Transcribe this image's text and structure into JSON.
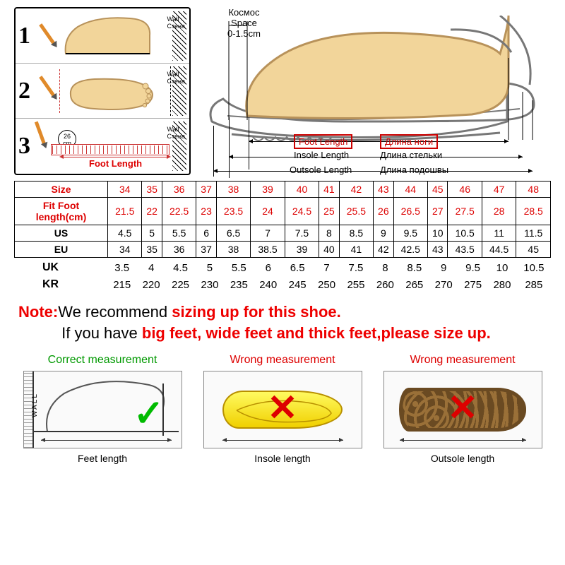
{
  "steps": {
    "wall_en": "Wall",
    "wall_ru": "Стена",
    "circle": "26\ncm",
    "foot_length": "Foot Length"
  },
  "diagram": {
    "space_ru": "Космос",
    "space_en": "Space",
    "space_range": "0-1.5cm",
    "foot_en": "Foot Length",
    "foot_ru": "Длина ноги",
    "insole_en": "Insole Length",
    "insole_ru": "Длина стельки",
    "outsole_en": "Outsole Length",
    "outsole_ru": "Длина подошвы"
  },
  "table": {
    "headers": [
      "Size",
      "Fit Foot length(cm)",
      "US",
      "EU",
      "UK",
      "KR"
    ],
    "sizes": [
      "34",
      "35",
      "36",
      "37",
      "38",
      "39",
      "40",
      "41",
      "42",
      "43",
      "44",
      "45",
      "46",
      "47",
      "48"
    ],
    "fit": [
      "21.5",
      "22",
      "22.5",
      "23",
      "23.5",
      "24",
      "24.5",
      "25",
      "25.5",
      "26",
      "26.5",
      "27",
      "27.5",
      "28",
      "28.5"
    ],
    "us": [
      "4.5",
      "5",
      "5.5",
      "6",
      "6.5",
      "7",
      "7.5",
      "8",
      "8.5",
      "9",
      "9.5",
      "10",
      "10.5",
      "11",
      "11.5"
    ],
    "eu": [
      "34",
      "35",
      "36",
      "37",
      "38",
      "38.5",
      "39",
      "40",
      "41",
      "42",
      "42.5",
      "43",
      "43.5",
      "44.5",
      "45"
    ],
    "uk": [
      "3.5",
      "4",
      "4.5",
      "5",
      "5.5",
      "6",
      "6.5",
      "7",
      "7.5",
      "8",
      "8.5",
      "9",
      "9.5",
      "10",
      "10.5"
    ],
    "kr": [
      "215",
      "220",
      "225",
      "230",
      "235",
      "240",
      "245",
      "250",
      "255",
      "260",
      "265",
      "270",
      "275",
      "280",
      "285"
    ]
  },
  "note": {
    "label": "Note:",
    "l1a": "We recommend ",
    "l1b": "sizing up for this shoe.",
    "l2a": "If you have ",
    "l2b": "big feet, wide feet and thick feet,please size up."
  },
  "measure": {
    "correct": "Correct measurement",
    "wrong": "Wrong measurement",
    "feet": "Feet length",
    "insole": "Insole length",
    "outsole": "Outsole length",
    "wall": "WALL"
  },
  "style": {
    "red": "#d00",
    "green": "#0b0",
    "foot_fill": "#f2d59a",
    "foot_stroke": "#b8925a",
    "shoe_outline": "#777",
    "table_border": "#000"
  }
}
